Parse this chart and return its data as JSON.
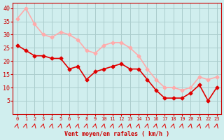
{
  "x": [
    0,
    1,
    2,
    3,
    4,
    5,
    6,
    7,
    8,
    9,
    10,
    11,
    12,
    13,
    14,
    15,
    16,
    17,
    18,
    19,
    20,
    21,
    22,
    23
  ],
  "wind_avg": [
    26,
    24,
    22,
    22,
    21,
    21,
    17,
    18,
    13,
    16,
    17,
    18,
    19,
    17,
    17,
    13,
    9,
    6,
    6,
    6,
    8,
    11,
    5,
    10
  ],
  "wind_gust": [
    36,
    40,
    34,
    30,
    29,
    31,
    30,
    28,
    24,
    23,
    26,
    27,
    27,
    25,
    22,
    17,
    13,
    10,
    10,
    9,
    10,
    14,
    13,
    14
  ],
  "avg_color": "#e00000",
  "gust_color": "#ffaaaa",
  "bg_color": "#d0eeee",
  "grid_color": "#aacccc",
  "xlabel": "Vent moyen/en rafales ( km/h )",
  "xlabel_color": "#cc0000",
  "tick_color": "#cc0000",
  "ylim": [
    0,
    42
  ],
  "yticks": [
    5,
    10,
    15,
    20,
    25,
    30,
    35,
    40
  ],
  "xlim": [
    -0.5,
    23.5
  ]
}
